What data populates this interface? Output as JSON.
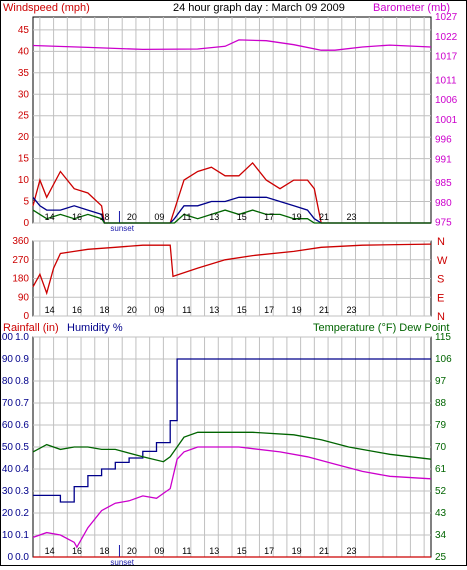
{
  "header": {
    "left_label": "Windspeed (mph)",
    "center_label": "24 hour graph day : March 09 2009",
    "right_label": "Barometer (mb)"
  },
  "colors": {
    "red": "#cc0000",
    "blue": "#00008b",
    "green": "#006400",
    "magenta": "#cc00cc",
    "grid": "#c0c0c0",
    "sunset": "#1a1aaa"
  },
  "sunset_label": "sunset",
  "chart_data": [
    {
      "type": "line",
      "title": "24 hour graph day : March 09 2009",
      "x_tick_labels": [
        "14",
        "16",
        "18",
        "20",
        "09",
        "11",
        "13",
        "15",
        "17",
        "19",
        "21",
        "23"
      ],
      "left_axis": {
        "label": "Windspeed (mph)",
        "ticks": [
          "0",
          "5",
          "10",
          "15",
          "20",
          "25",
          "30",
          "35",
          "40",
          "45"
        ],
        "ylim": [
          0,
          48
        ]
      },
      "right_axis": {
        "label": "Barometer (mb)",
        "ticks": [
          "975",
          "980",
          "985",
          "991",
          "996",
          "1001",
          "1006",
          "1011",
          "1017",
          "1022",
          "1027"
        ],
        "ylim": [
          974.9,
          1027
        ]
      },
      "series": [
        {
          "role": "barometer",
          "axis": "right",
          "points": [
            [
              0,
              1019.8
            ],
            [
              4,
              1019.3
            ],
            [
              8,
              1018.8
            ],
            [
              12,
              1018.9
            ],
            [
              14,
              1019.6
            ],
            [
              15,
              1021.2
            ],
            [
              17,
              1021.0
            ],
            [
              19,
              1020.0
            ],
            [
              21,
              1018.6
            ],
            [
              22,
              1018.6
            ],
            [
              24,
              1019.4
            ],
            [
              26,
              1019.9
            ],
            [
              29,
              1019.4
            ]
          ]
        },
        {
          "role": "wind_gust",
          "axis": "left",
          "points": [
            [
              0,
              4
            ],
            [
              0.5,
              10
            ],
            [
              1,
              6
            ],
            [
              2,
              12
            ],
            [
              3,
              8
            ],
            [
              4,
              7
            ],
            [
              5,
              4
            ],
            [
              5.2,
              0
            ],
            [
              10,
              0
            ],
            [
              10.3,
              3
            ],
            [
              11,
              10
            ],
            [
              12,
              12
            ],
            [
              13,
              13
            ],
            [
              14,
              11
            ],
            [
              15,
              11
            ],
            [
              16,
              14
            ],
            [
              17,
              10
            ],
            [
              18,
              8
            ],
            [
              19,
              10
            ],
            [
              20,
              10
            ],
            [
              20.5,
              8
            ],
            [
              21,
              0
            ],
            [
              29,
              0
            ]
          ]
        },
        {
          "role": "wind_avg",
          "axis": "left",
          "points": [
            [
              0,
              6
            ],
            [
              0.5,
              4
            ],
            [
              1,
              3
            ],
            [
              2,
              3
            ],
            [
              3,
              4
            ],
            [
              4,
              3
            ],
            [
              5,
              2
            ],
            [
              5.2,
              0
            ],
            [
              10,
              0
            ],
            [
              10.3,
              1
            ],
            [
              11,
              4
            ],
            [
              12,
              4
            ],
            [
              13,
              5
            ],
            [
              14,
              5
            ],
            [
              15,
              6
            ],
            [
              16,
              6
            ],
            [
              17,
              6
            ],
            [
              18,
              5
            ],
            [
              19,
              4
            ],
            [
              20,
              3
            ],
            [
              20.5,
              1
            ],
            [
              21,
              0
            ],
            [
              29,
              0
            ]
          ]
        },
        {
          "role": "wind_low",
          "axis": "left",
          "points": [
            [
              0,
              3
            ],
            [
              0.5,
              2
            ],
            [
              1,
              1
            ],
            [
              2,
              2
            ],
            [
              3,
              1
            ],
            [
              4,
              2
            ],
            [
              5,
              1
            ],
            [
              5.2,
              0
            ],
            [
              10,
              0
            ],
            [
              10.3,
              0
            ],
            [
              11,
              2
            ],
            [
              12,
              1
            ],
            [
              13,
              2
            ],
            [
              14,
              3
            ],
            [
              15,
              2
            ],
            [
              16,
              3
            ],
            [
              17,
              2
            ],
            [
              18,
              2
            ],
            [
              19,
              1
            ],
            [
              20,
              1
            ],
            [
              20.5,
              0
            ],
            [
              21,
              0
            ],
            [
              29,
              0
            ]
          ]
        }
      ]
    },
    {
      "type": "line",
      "title": "",
      "x_tick_labels": [
        "14",
        "16",
        "18",
        "20",
        "09",
        "11",
        "13",
        "15",
        "17",
        "19",
        "21",
        "23"
      ],
      "left_axis": {
        "label": "",
        "ticks": [
          "0",
          "90",
          "180",
          "270",
          "360"
        ],
        "ylim": [
          0,
          360
        ]
      },
      "right_axis": {
        "label": "",
        "ticks": [
          "N",
          "E",
          "S",
          "W",
          "N"
        ]
      },
      "series": [
        {
          "role": "wind_direction",
          "axis": "left",
          "points": [
            [
              0,
              140
            ],
            [
              0.5,
              200
            ],
            [
              1,
              110
            ],
            [
              1.5,
              230
            ],
            [
              2,
              300
            ],
            [
              3,
              310
            ],
            [
              4,
              320
            ],
            [
              6,
              330
            ],
            [
              8,
              340
            ],
            [
              10,
              340
            ],
            [
              10.2,
              190
            ],
            [
              12,
              230
            ],
            [
              14,
              270
            ],
            [
              16,
              290
            ],
            [
              19,
              310
            ],
            [
              21,
              330
            ],
            [
              24,
              340
            ],
            [
              29,
              345
            ]
          ]
        }
      ]
    },
    {
      "type": "line",
      "title": "",
      "x_tick_labels": [
        "14",
        "16",
        "18",
        "20",
        "09",
        "11",
        "13",
        "15",
        "17",
        "19",
        "21",
        "23"
      ],
      "left_axes": [
        {
          "label": "Rainfall (in)",
          "ticks": [
            "0.0",
            "0.1",
            "0.2",
            "0.3",
            "0.4",
            "0.5",
            "0.6",
            "0.7",
            "0.8",
            "0.9",
            "1.0"
          ]
        },
        {
          "label": "Humidity %",
          "ticks": [
            "0",
            "10",
            "20",
            "30",
            "40",
            "50",
            "60",
            "70",
            "80",
            "90",
            "100"
          ]
        }
      ],
      "right_axis": {
        "label": "Temperature (°F) Dew Point",
        "ticks": [
          "25",
          "34",
          "43",
          "52",
          "61",
          "70",
          "79",
          "88",
          "97",
          "106",
          "115"
        ]
      },
      "series": [
        {
          "role": "rainfall",
          "axis": "left",
          "points": [
            [
              0,
              0
            ],
            [
              29,
              0
            ]
          ]
        },
        {
          "role": "humidity",
          "axis": "left",
          "points": [
            [
              0,
              28
            ],
            [
              2,
              28
            ],
            [
              2,
              25
            ],
            [
              3,
              25
            ],
            [
              3,
              32
            ],
            [
              4,
              32
            ],
            [
              4,
              37
            ],
            [
              5,
              37
            ],
            [
              5,
              40
            ],
            [
              6,
              40
            ],
            [
              6,
              43
            ],
            [
              7,
              43
            ],
            [
              7,
              45
            ],
            [
              8,
              45
            ],
            [
              8,
              48
            ],
            [
              9,
              48
            ],
            [
              9,
              52
            ],
            [
              10,
              52
            ],
            [
              10,
              62
            ],
            [
              10.5,
              62
            ],
            [
              10.5,
              90
            ],
            [
              29,
              90
            ]
          ]
        },
        {
          "role": "temperature",
          "axis": "right",
          "points": [
            [
              0,
              68
            ],
            [
              1,
              71
            ],
            [
              2,
              69
            ],
            [
              3,
              70
            ],
            [
              4,
              70
            ],
            [
              5,
              69
            ],
            [
              6,
              69
            ],
            [
              8,
              66
            ],
            [
              9.5,
              64
            ],
            [
              10,
              66
            ],
            [
              10.5,
              70
            ],
            [
              11,
              74
            ],
            [
              12,
              76
            ],
            [
              14,
              76
            ],
            [
              16,
              76
            ],
            [
              19,
              75
            ],
            [
              21,
              73
            ],
            [
              23,
              70
            ],
            [
              25,
              68
            ],
            [
              26,
              67
            ],
            [
              29,
              65
            ]
          ]
        },
        {
          "role": "dew_point",
          "axis": "right",
          "points": [
            [
              0,
              33
            ],
            [
              1,
              35
            ],
            [
              2,
              34
            ],
            [
              3,
              31
            ],
            [
              3.2,
              29
            ],
            [
              4,
              37
            ],
            [
              5,
              44
            ],
            [
              6,
              47
            ],
            [
              7,
              48
            ],
            [
              8,
              50
            ],
            [
              9,
              49
            ],
            [
              9.5,
              51
            ],
            [
              10,
              53
            ],
            [
              10.5,
              65
            ],
            [
              11,
              68
            ],
            [
              12,
              70
            ],
            [
              15,
              70
            ],
            [
              18,
              68
            ],
            [
              20,
              66
            ],
            [
              22,
              63
            ],
            [
              24,
              60
            ],
            [
              26,
              58
            ],
            [
              29,
              57
            ]
          ]
        }
      ]
    }
  ]
}
